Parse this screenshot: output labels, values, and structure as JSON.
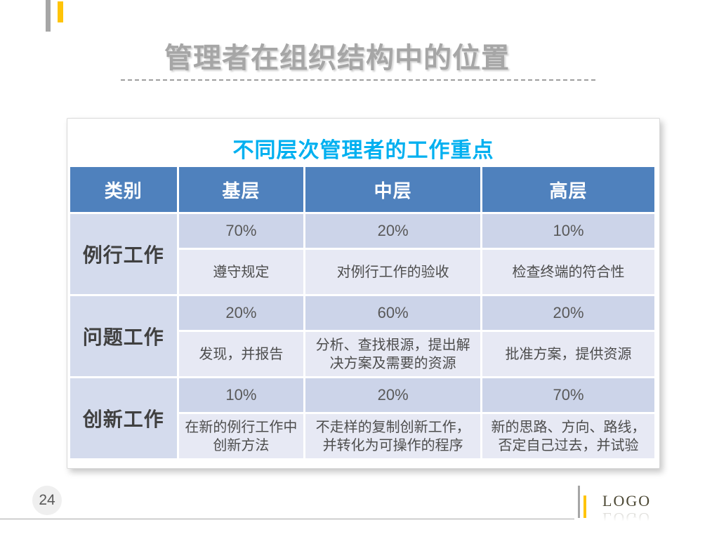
{
  "slide": {
    "title": "管理者在组织结构中的位置",
    "page_number": "24",
    "logo_text": "LOGO"
  },
  "table": {
    "title": "不同层次管理者的工作重点",
    "headers": [
      "类别",
      "基层",
      "中层",
      "高层"
    ],
    "rows": [
      {
        "category": "例行工作",
        "percents": [
          "70%",
          "20%",
          "10%"
        ],
        "descriptions": [
          "遵守规定",
          "对例行工作的验收",
          "检查终端的符合性"
        ]
      },
      {
        "category": "问题工作",
        "percents": [
          "20%",
          "60%",
          "20%"
        ],
        "descriptions": [
          "发现，并报告",
          "分析、查找根源，提出解决方案及需要的资源",
          "批准方案，提供资源"
        ]
      },
      {
        "category": "创新工作",
        "percents": [
          "10%",
          "20%",
          "70%"
        ],
        "descriptions": [
          "在新的例行工作中创新方法",
          "不走样的复制创新工作，并转化为可操作的程序",
          "新的思路、方向、路线，否定自己过去，并试验"
        ]
      }
    ]
  },
  "colors": {
    "accent_yellow": "#FFC408",
    "accent_gray": "#A6A6A6",
    "slide_title_text": "#A6A6A6",
    "table_title_text": "#00B0F0",
    "table_header_bg": "#4F81BD",
    "table_header_text": "#FFFFFF",
    "cell_category_bg": "#D4DBED",
    "cell_percent_bg": "#CCD4E9",
    "cell_description_bg": "#E7E9F4",
    "body_text": "#595959"
  }
}
